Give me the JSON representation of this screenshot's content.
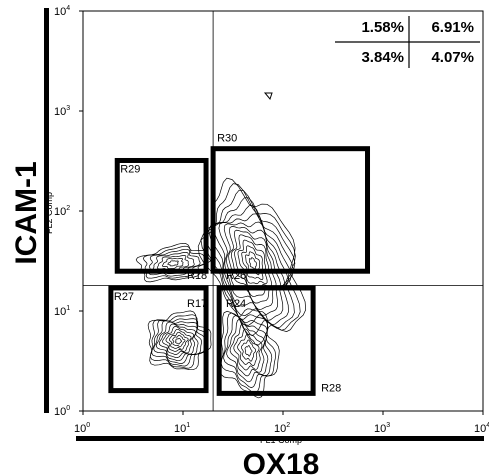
{
  "chart_data": {
    "type": "contour",
    "x_scale": "log",
    "y_scale": "log",
    "xlim": [
      1,
      10000
    ],
    "ylim": [
      1,
      10000
    ],
    "x_ticks": [
      {
        "base": "10",
        "exp": "0",
        "value": 1
      },
      {
        "base": "10",
        "exp": "1",
        "value": 10
      },
      {
        "base": "10",
        "exp": "2",
        "value": 100
      },
      {
        "base": "10",
        "exp": "3",
        "value": 1000
      },
      {
        "base": "10",
        "exp": "4",
        "value": 10000
      }
    ],
    "y_ticks": [
      {
        "base": "10",
        "exp": "0",
        "value": 1
      },
      {
        "base": "10",
        "exp": "1",
        "value": 10
      },
      {
        "base": "10",
        "exp": "2",
        "value": 100
      },
      {
        "base": "10",
        "exp": "3",
        "value": 1000
      },
      {
        "base": "10",
        "exp": "4",
        "value": 10000
      }
    ],
    "xlabel": "OX18",
    "ylabel": "ICAM-1",
    "x_channel_label": "FL1 Comp",
    "y_channel_label": "FL2 Comp",
    "quadrant_split": {
      "x": 20,
      "y": 18
    },
    "quadrant_percentages": {
      "upper_left": "1.58%",
      "upper_right": "6.91%",
      "lower_left": "3.84%",
      "lower_right": "4.07%"
    },
    "gates": [
      {
        "name": "R30",
        "x": [
          20,
          700
        ],
        "y": [
          25,
          420
        ]
      },
      {
        "name": "R29",
        "x": [
          2.2,
          17
        ],
        "y": [
          25,
          320
        ]
      },
      {
        "name": "R27",
        "x": [
          1.9,
          17
        ],
        "y": [
          1.6,
          17
        ]
      },
      {
        "name": "R28",
        "x": [
          23,
          200
        ],
        "y": [
          1.5,
          17
        ]
      }
    ],
    "inner_labels": [
      "R18",
      "R17",
      "R26",
      "R24"
    ],
    "populations": [
      {
        "name": "main",
        "center": [
          50,
          30
        ],
        "spread": [
          0.3,
          0.55
        ],
        "levels": 14
      },
      {
        "name": "left-upper",
        "center": [
          8,
          30
        ],
        "spread": [
          0.25,
          0.12
        ],
        "levels": 7
      },
      {
        "name": "left-lower",
        "center": [
          9,
          5
        ],
        "spread": [
          0.22,
          0.2
        ],
        "levels": 11
      },
      {
        "name": "right-lower",
        "center": [
          45,
          4
        ],
        "spread": [
          0.2,
          0.3
        ],
        "levels": 9
      }
    ]
  }
}
